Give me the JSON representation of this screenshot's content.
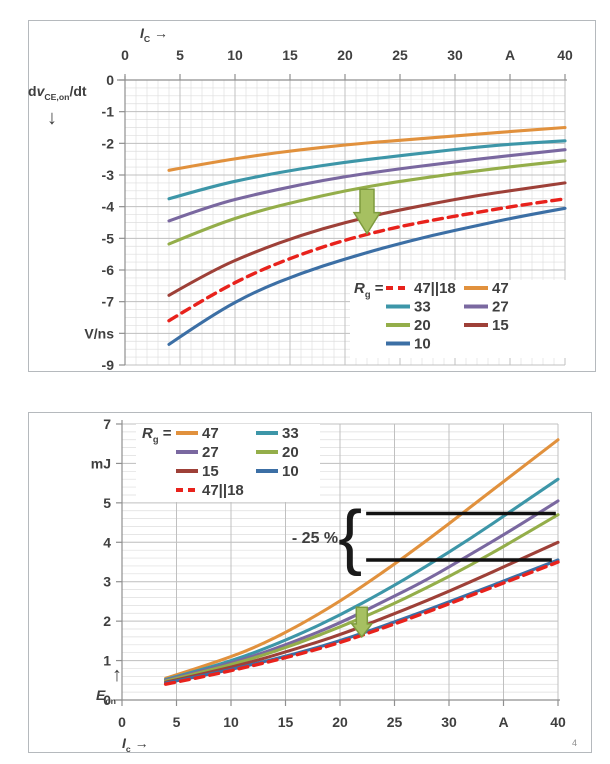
{
  "corner_mark": "4",
  "colors": {
    "orange": "#E1913D",
    "teal": "#3D96A8",
    "purple": "#7A68A0",
    "green": "#94AE4A",
    "darkred": "#9E4038",
    "blue": "#3C6FA5",
    "red": "#E8221C",
    "grid_minor": "#DEDEDE",
    "grid_major": "#C0C0C0",
    "axis": "#8F8F8F",
    "text": "#3F3F3F",
    "annotation_black": "#111111",
    "arrow_fill": "#A6C061",
    "arrow_stroke": "#7E9B3E",
    "panel_border": "#B5B9BD"
  },
  "chart_data": [
    {
      "type": "line",
      "name": "dvdt-vs-ic",
      "xlabel_runs": [
        {
          "t": "I",
          "i": 1
        },
        {
          "t": "C",
          "s": 1
        },
        {
          "t": " →"
        }
      ],
      "ylabel_runs": [
        {
          "t": "d"
        },
        {
          "t": "v",
          "i": 1
        },
        {
          "t": "CE,on",
          "s": 1
        },
        {
          "t": "/dt"
        }
      ],
      "ylabel_arrow": "↓",
      "xlim": [
        0,
        40
      ],
      "ylim": [
        -9,
        0
      ],
      "grid": {
        "x_minor": 1,
        "x_major": 5,
        "y_minor": 0.25,
        "y_major": 1
      },
      "x_ticks": [
        {
          "v": 0,
          "t": "0"
        },
        {
          "v": 5,
          "t": "5"
        },
        {
          "v": 10,
          "t": "10"
        },
        {
          "v": 15,
          "t": "15"
        },
        {
          "v": 20,
          "t": "20"
        },
        {
          "v": 25,
          "t": "25"
        },
        {
          "v": 30,
          "t": "30"
        },
        {
          "v": 35,
          "t": "A"
        },
        {
          "v": 40,
          "t": "40"
        }
      ],
      "y_ticks": [
        {
          "v": 0,
          "t": "0"
        },
        {
          "v": -1,
          "t": "-1"
        },
        {
          "v": -2,
          "t": "-2"
        },
        {
          "v": -3,
          "t": "-3"
        },
        {
          "v": -4,
          "t": "-4"
        },
        {
          "v": -5,
          "t": "-5"
        },
        {
          "v": -6,
          "t": "-6"
        },
        {
          "v": -7,
          "t": "-7"
        },
        {
          "v": -8,
          "t": "V/ns"
        },
        {
          "v": -9,
          "t": "-9"
        }
      ],
      "x": [
        4,
        8,
        12,
        16,
        20,
        24,
        28,
        32,
        36,
        40
      ],
      "series": [
        {
          "name": "47",
          "color": "orange",
          "dash": false,
          "y": [
            -2.85,
            -2.6,
            -2.38,
            -2.2,
            -2.05,
            -1.93,
            -1.82,
            -1.71,
            -1.6,
            -1.5
          ]
        },
        {
          "name": "33",
          "color": "teal",
          "dash": false,
          "y": [
            -3.75,
            -3.35,
            -3.05,
            -2.8,
            -2.6,
            -2.43,
            -2.27,
            -2.12,
            -2.0,
            -1.92
          ]
        },
        {
          "name": "27",
          "color": "purple",
          "dash": false,
          "y": [
            -4.45,
            -3.95,
            -3.6,
            -3.3,
            -3.05,
            -2.85,
            -2.67,
            -2.5,
            -2.35,
            -2.2
          ]
        },
        {
          "name": "20",
          "color": "green",
          "dash": false,
          "y": [
            -5.18,
            -4.6,
            -4.15,
            -3.8,
            -3.5,
            -3.25,
            -3.05,
            -2.87,
            -2.7,
            -2.55
          ]
        },
        {
          "name": "15",
          "color": "darkred",
          "dash": false,
          "y": [
            -6.8,
            -6.0,
            -5.4,
            -4.9,
            -4.5,
            -4.17,
            -3.9,
            -3.65,
            -3.45,
            -3.25
          ]
        },
        {
          "name": "10",
          "color": "blue",
          "dash": false,
          "y": [
            -8.35,
            -7.4,
            -6.65,
            -6.1,
            -5.65,
            -5.25,
            -4.9,
            -4.6,
            -4.3,
            -4.05
          ]
        },
        {
          "name": "47||18",
          "color": "red",
          "dash": true,
          "y": [
            -7.6,
            -6.75,
            -6.05,
            -5.5,
            -5.05,
            -4.7,
            -4.42,
            -4.18,
            -3.95,
            -3.75
          ]
        }
      ],
      "legend": {
        "title_runs": [
          {
            "t": "R",
            "i": 1
          },
          {
            "t": "g",
            "s": 1
          },
          {
            "t": " ="
          }
        ],
        "rows": [
          [
            {
              "label": "47||18",
              "color": "red",
              "dash": true
            },
            {
              "label": "47",
              "color": "orange",
              "dash": false
            }
          ],
          [
            {
              "label": "33",
              "color": "teal",
              "dash": false
            },
            {
              "label": "27",
              "color": "purple",
              "dash": false
            }
          ],
          [
            {
              "label": "20",
              "color": "green",
              "dash": false
            },
            {
              "label": "15",
              "color": "darkred",
              "dash": false
            }
          ],
          [
            {
              "label": "10",
              "color": "blue",
              "dash": false
            }
          ]
        ]
      },
      "annotations": {
        "arrow": {
          "x": 22,
          "y_from": -3.45,
          "y_to": -4.85
        }
      }
    },
    {
      "type": "line",
      "name": "eon-vs-ic",
      "xlabel_runs": [
        {
          "t": "I",
          "i": 1
        },
        {
          "t": "c",
          "s": 1
        },
        {
          "t": " →"
        }
      ],
      "ylabel_runs": [
        {
          "t": "E",
          "i": 1
        },
        {
          "t": "on",
          "s": 1
        }
      ],
      "ylabel_arrow": "↑",
      "xlim": [
        0,
        40
      ],
      "ylim": [
        0,
        7
      ],
      "grid": {
        "x_major": 5,
        "y_minor": 0.2,
        "y_major": 1
      },
      "x_ticks": [
        {
          "v": 0,
          "t": "0"
        },
        {
          "v": 5,
          "t": "5"
        },
        {
          "v": 10,
          "t": "10"
        },
        {
          "v": 15,
          "t": "15"
        },
        {
          "v": 20,
          "t": "20"
        },
        {
          "v": 25,
          "t": "25"
        },
        {
          "v": 30,
          "t": "30"
        },
        {
          "v": 35,
          "t": "A"
        },
        {
          "v": 40,
          "t": "40"
        }
      ],
      "y_ticks": [
        {
          "v": 7,
          "t": "7"
        },
        {
          "v": 6,
          "t": "mJ"
        },
        {
          "v": 5,
          "t": "5"
        },
        {
          "v": 4,
          "t": "4"
        },
        {
          "v": 3,
          "t": "3"
        },
        {
          "v": 2,
          "t": "2"
        },
        {
          "v": 1,
          "t": "1"
        },
        {
          "v": 0,
          "t": "0"
        }
      ],
      "x": [
        4,
        8,
        12,
        16,
        20,
        24,
        28,
        32,
        36,
        40
      ],
      "series": [
        {
          "name": "47",
          "color": "orange",
          "dash": false,
          "y": [
            0.55,
            0.9,
            1.3,
            1.85,
            2.5,
            3.25,
            4.05,
            4.9,
            5.75,
            6.6
          ]
        },
        {
          "name": "33",
          "color": "teal",
          "dash": false,
          "y": [
            0.52,
            0.82,
            1.18,
            1.63,
            2.15,
            2.75,
            3.4,
            4.1,
            4.85,
            5.6
          ]
        },
        {
          "name": "27",
          "color": "purple",
          "dash": false,
          "y": [
            0.5,
            0.78,
            1.1,
            1.5,
            1.95,
            2.5,
            3.05,
            3.7,
            4.35,
            5.05
          ]
        },
        {
          "name": "20",
          "color": "green",
          "dash": false,
          "y": [
            0.48,
            0.75,
            1.05,
            1.42,
            1.85,
            2.32,
            2.85,
            3.42,
            4.05,
            4.7
          ]
        },
        {
          "name": "15",
          "color": "darkred",
          "dash": false,
          "y": [
            0.45,
            0.7,
            0.97,
            1.3,
            1.65,
            2.08,
            2.52,
            3.0,
            3.5,
            4.0
          ]
        },
        {
          "name": "10",
          "color": "blue",
          "dash": false,
          "y": [
            0.43,
            0.65,
            0.9,
            1.18,
            1.5,
            1.88,
            2.28,
            2.7,
            3.12,
            3.55
          ]
        },
        {
          "name": "47||18",
          "color": "red",
          "dash": true,
          "y": [
            0.4,
            0.62,
            0.87,
            1.14,
            1.45,
            1.83,
            2.23,
            2.65,
            3.07,
            3.5
          ]
        }
      ],
      "legend": {
        "title_runs": [
          {
            "t": "R",
            "i": 1
          },
          {
            "t": "g",
            "s": 1
          },
          {
            "t": " ="
          }
        ],
        "rows": [
          [
            {
              "label": "47",
              "color": "orange",
              "dash": false
            },
            {
              "label": "33",
              "color": "teal",
              "dash": false
            }
          ],
          [
            {
              "label": "27",
              "color": "purple",
              "dash": false
            },
            {
              "label": "20",
              "color": "green",
              "dash": false
            }
          ],
          [
            {
              "label": "15",
              "color": "darkred",
              "dash": false
            },
            {
              "label": "10",
              "color": "blue",
              "dash": false
            }
          ],
          [
            {
              "label": "47||18",
              "color": "red",
              "dash": true
            }
          ]
        ]
      },
      "annotations": {
        "arrow": {
          "x": 22,
          "y_from": 2.35,
          "y_to": 1.6
        },
        "minus25": {
          "label": "- 25 %",
          "y_top": 4.73,
          "y_bottom": 3.55,
          "x_from": 22.4,
          "x_to": 39.8
        }
      }
    }
  ]
}
